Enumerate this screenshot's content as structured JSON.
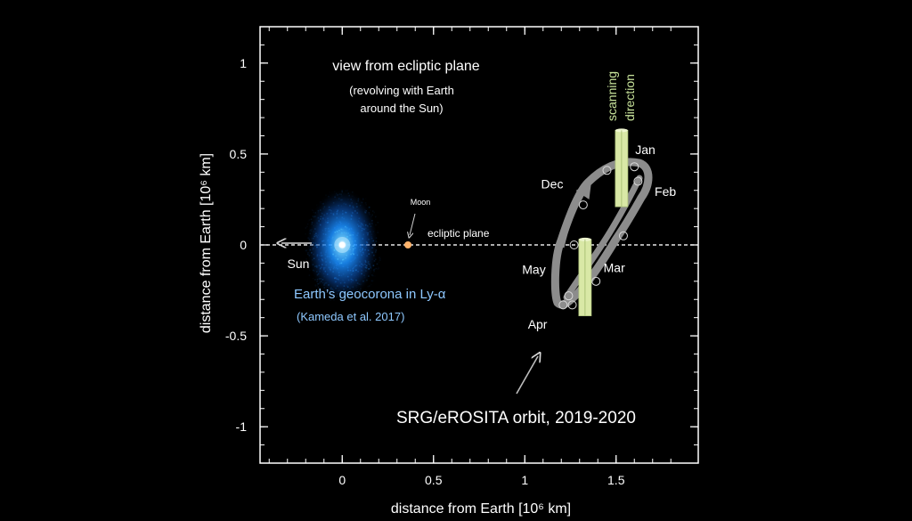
{
  "chart_data": {
    "type": "scatter",
    "title": "view from ecliptic plane",
    "subtitle_lines": [
      "(revolving with Earth",
      "around the Sun)"
    ],
    "xlabel": "distance from Earth [10⁶ km]",
    "ylabel": "distance from Earth [10⁶ km]",
    "xlim": [
      -0.45,
      1.95
    ],
    "ylim": [
      -1.2,
      1.2
    ],
    "x_ticks": [
      0,
      0.5,
      1,
      1.5
    ],
    "x_tick_labels": [
      "0",
      "0.5",
      "1",
      "1.5"
    ],
    "y_ticks": [
      1,
      0.5,
      0,
      -0.5,
      -1
    ],
    "y_tick_labels": [
      "1",
      "0.5",
      "0",
      "-0.5",
      "-1"
    ],
    "grid": false,
    "ecliptic_label": "ecliptic plane",
    "earth": {
      "x": 0,
      "y": 0
    },
    "geocorona_label": "Earth’s geocorona in Ly-α",
    "geocorona_ref": "(Kameda et al. 2017)",
    "moon": {
      "label": "Moon",
      "x": 0.36,
      "y": 0
    },
    "sun": {
      "label": "Sun"
    },
    "orbit_label": "SRG/eROSITA orbit, 2019-2020",
    "scan_label_lines": [
      "scanning",
      "direction"
    ],
    "month_labels": [
      {
        "text": "Dec",
        "x": 1.15,
        "y": 0.31
      },
      {
        "text": "Jan",
        "x": 1.66,
        "y": 0.5
      },
      {
        "text": "Feb",
        "x": 1.77,
        "y": 0.27
      },
      {
        "text": "Mar",
        "x": 1.49,
        "y": -0.15
      },
      {
        "text": "May",
        "x": 1.05,
        "y": -0.16
      },
      {
        "text": "Apr",
        "x": 1.07,
        "y": -0.46
      }
    ],
    "orbit_points": [
      {
        "x": 1.21,
        "y": -0.33
      },
      {
        "x": 1.24,
        "y": -0.28
      },
      {
        "x": 1.27,
        "y": 0.0
      },
      {
        "x": 1.32,
        "y": 0.22
      },
      {
        "x": 1.45,
        "y": 0.41
      },
      {
        "x": 1.6,
        "y": 0.43
      },
      {
        "x": 1.62,
        "y": 0.35
      },
      {
        "x": 1.54,
        "y": 0.05
      },
      {
        "x": 1.39,
        "y": -0.2
      },
      {
        "x": 1.26,
        "y": -0.33
      }
    ],
    "scan_bars": [
      {
        "x": 1.53,
        "y_top": 0.63,
        "y_bottom": 0.21
      },
      {
        "x": 1.33,
        "y_top": 0.03,
        "y_bottom": -0.39
      }
    ],
    "colors": {
      "background": "#000000",
      "axes": "#ffffff",
      "orbit": "#8c8c8c",
      "scan_bar": "#d9e8a6",
      "scan_text": "#c7e29a",
      "geocorona_label": "#8ec8ff",
      "moon": "#ffb36b",
      "corona_core": "#e8f6ff",
      "corona_glow": "#1a8fff"
    }
  }
}
